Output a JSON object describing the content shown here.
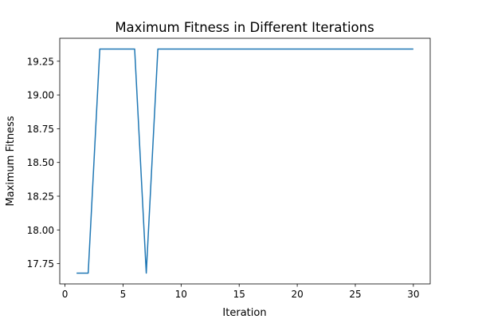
{
  "chart_data": {
    "type": "line",
    "title": "Maximum Fitness in Different Iterations",
    "xlabel": "Iteration",
    "ylabel": "Maximum Fitness",
    "xlim": [
      -0.45,
      31.45
    ],
    "ylim": [
      17.6,
      19.42
    ],
    "xticks": [
      0,
      5,
      10,
      15,
      20,
      25,
      30
    ],
    "yticks": [
      17.75,
      18.0,
      18.25,
      18.5,
      18.75,
      19.0,
      19.25
    ],
    "grid": false,
    "series": [
      {
        "color": "#1f77b4",
        "x": [
          1,
          2,
          3,
          4,
          5,
          6,
          7,
          8,
          9,
          10,
          11,
          12,
          13,
          14,
          15,
          16,
          17,
          18,
          19,
          20,
          21,
          22,
          23,
          24,
          25,
          26,
          27,
          28,
          29,
          30
        ],
        "y": [
          17.68,
          17.68,
          19.34,
          19.34,
          19.34,
          19.34,
          17.68,
          19.34,
          19.34,
          19.34,
          19.34,
          19.34,
          19.34,
          19.34,
          19.34,
          19.34,
          19.34,
          19.34,
          19.34,
          19.34,
          19.34,
          19.34,
          19.34,
          19.34,
          19.34,
          19.34,
          19.34,
          19.34,
          19.34,
          19.34
        ]
      }
    ]
  }
}
